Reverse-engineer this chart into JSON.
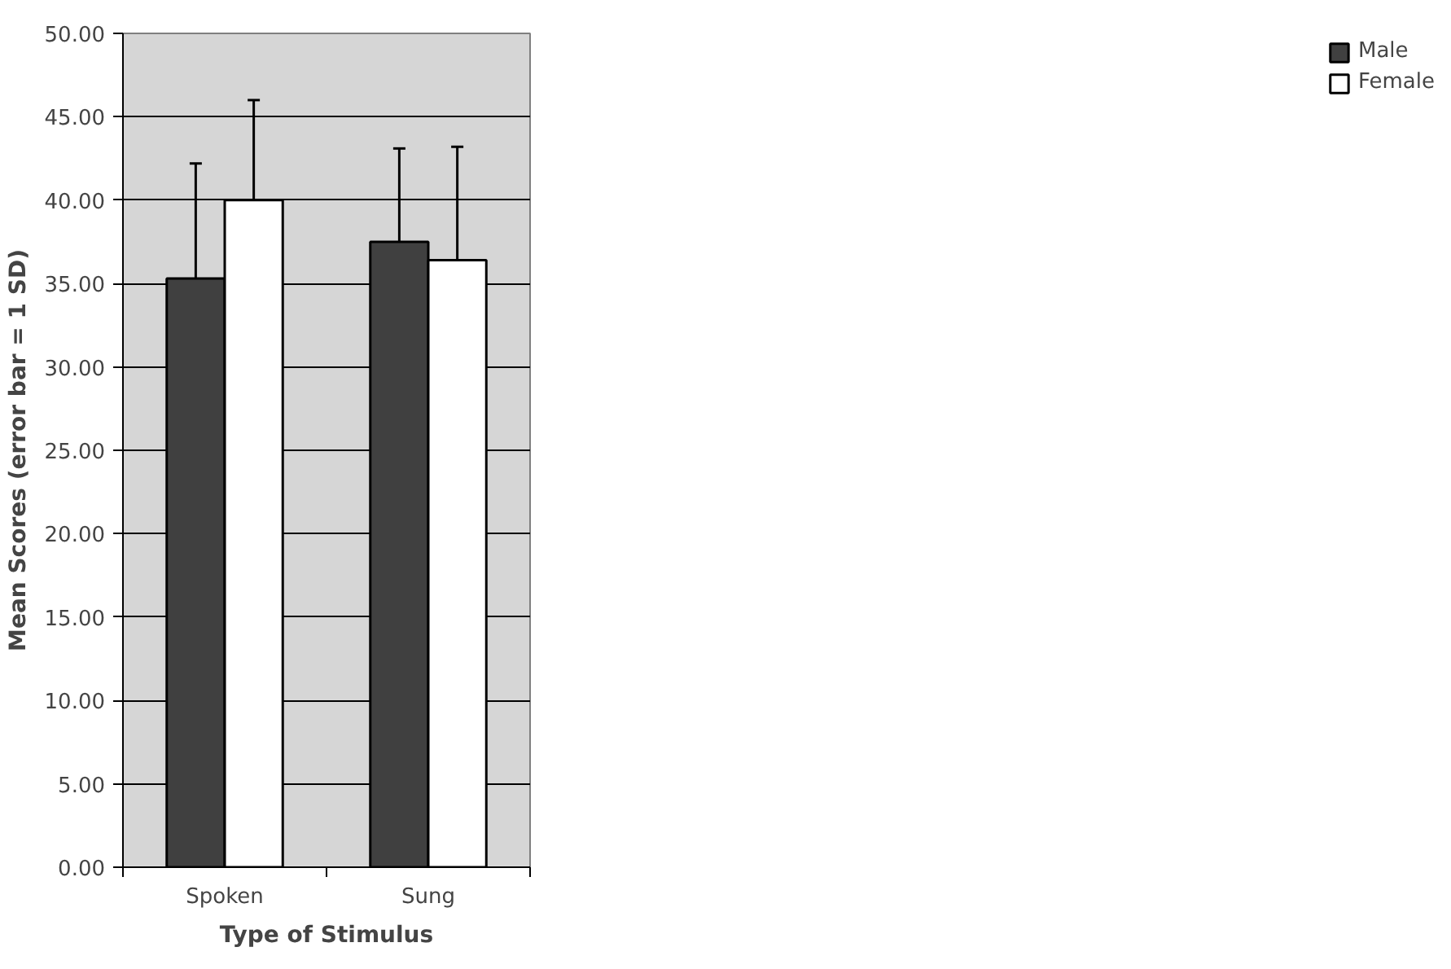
{
  "chart_data": {
    "type": "bar",
    "xlabel": "Type of Stimulus",
    "ylabel": "Mean Scores (error bar = 1 SD)",
    "categories": [
      "Spoken",
      "Sung"
    ],
    "series": [
      {
        "name": "Male",
        "color": "#404040",
        "values": [
          35.3,
          37.5
        ],
        "errors": [
          [
            35.3,
            42.2
          ],
          [
            37.5,
            43.1
          ]
        ]
      },
      {
        "name": "Female",
        "color": "#ffffff",
        "values": [
          40.0,
          36.4
        ],
        "errors": [
          [
            40.0,
            46.0
          ],
          [
            36.4,
            43.2
          ]
        ]
      }
    ],
    "ylim": [
      0,
      50
    ],
    "yticks": [
      {
        "value": 0,
        "label": "0.00"
      },
      {
        "value": 5,
        "label": "5.00"
      },
      {
        "value": 10,
        "label": "10.00"
      },
      {
        "value": 15,
        "label": "15.00"
      },
      {
        "value": 20,
        "label": "20.00"
      },
      {
        "value": 25,
        "label": "25.00"
      },
      {
        "value": 30,
        "label": "30.00"
      },
      {
        "value": 35,
        "label": "35.00"
      },
      {
        "value": 40,
        "label": "40.00"
      },
      {
        "value": 45,
        "label": "45.00"
      },
      {
        "value": 50,
        "label": "50.00"
      }
    ],
    "grid": "y",
    "legend": "right"
  }
}
